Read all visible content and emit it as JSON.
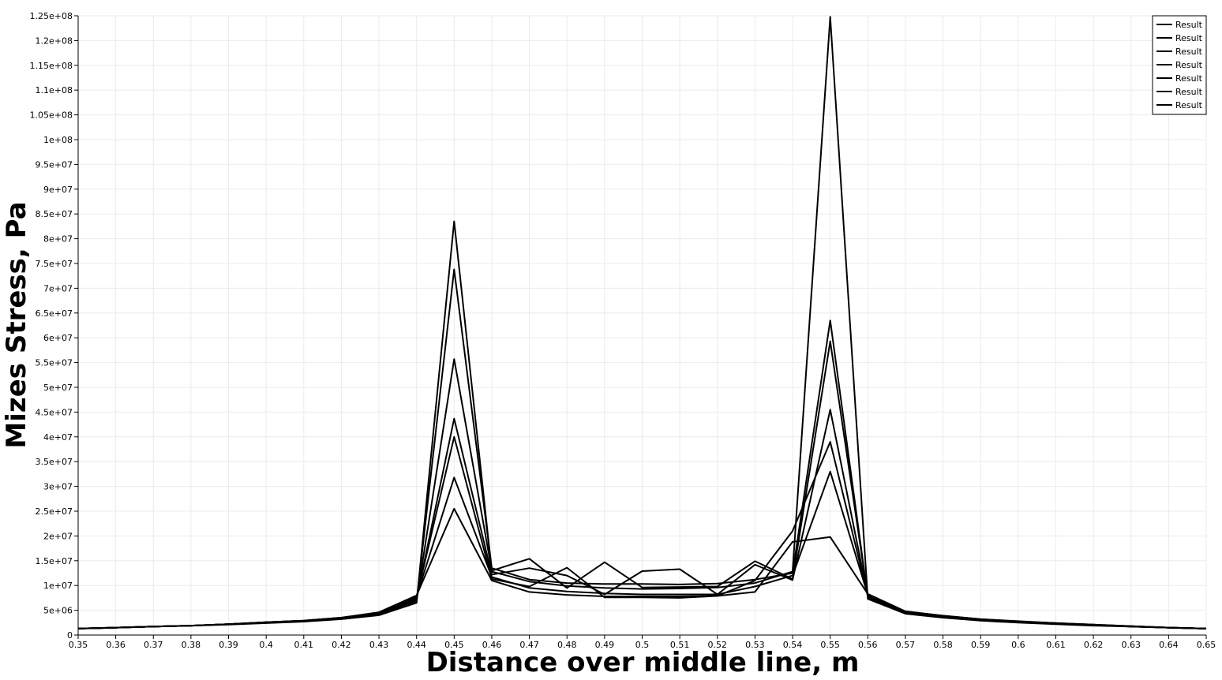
{
  "chart_data": {
    "type": "line",
    "title": "",
    "xlabel": "Distance over middle line, m",
    "ylabel": "Mizes Stress, Pa",
    "xlim": [
      0.35,
      0.65
    ],
    "ylim": [
      0,
      125000000
    ],
    "grid": true,
    "legend_position": "top-right",
    "x_ticks": [
      "0.35",
      "0.36",
      "0.37",
      "0.38",
      "0.39",
      "0.4",
      "0.41",
      "0.42",
      "0.43",
      "0.44",
      "0.45",
      "0.46",
      "0.47",
      "0.48",
      "0.49",
      "0.5",
      "0.51",
      "0.52",
      "0.53",
      "0.54",
      "0.55",
      "0.56",
      "0.57",
      "0.58",
      "0.59",
      "0.6",
      "0.61",
      "0.62",
      "0.63",
      "0.64",
      "0.65"
    ],
    "y_ticks": [
      "0",
      "5e+06",
      "1e+07",
      "1.5e+07",
      "2e+07",
      "2.5e+07",
      "3e+07",
      "3.5e+07",
      "4e+07",
      "4.5e+07",
      "5e+07",
      "5.5e+07",
      "6e+07",
      "6.5e+07",
      "7e+07",
      "7.5e+07",
      "8e+07",
      "8.5e+07",
      "9e+07",
      "9.5e+07",
      "1e+08",
      "1.05e+08",
      "1.1e+08",
      "1.15e+08",
      "1.2e+08",
      "1.25e+08"
    ],
    "x": [
      0.35,
      0.36,
      0.37,
      0.38,
      0.39,
      0.4,
      0.41,
      0.42,
      0.43,
      0.44,
      0.45,
      0.46,
      0.47,
      0.48,
      0.49,
      0.5,
      0.51,
      0.52,
      0.53,
      0.54,
      0.55,
      0.56,
      0.57,
      0.58,
      0.59,
      0.6,
      0.61,
      0.62,
      0.63,
      0.64,
      0.65
    ],
    "series": [
      {
        "name": "Result",
        "values": [
          1300000,
          1500000,
          1700000,
          1900000,
          2100000,
          2400000,
          2700000,
          3200000,
          4000000,
          6500000,
          83500000,
          12800000,
          10800000,
          9900000,
          9500000,
          9300000,
          9400000,
          9600000,
          10500000,
          12800000,
          124800000,
          7300000,
          4300000,
          3500000,
          2900000,
          2500000,
          2200000,
          1900000,
          1700000,
          1500000,
          1300000
        ]
      },
      {
        "name": "Result",
        "values": [
          1300000,
          1500000,
          1700000,
          1900000,
          2200000,
          2500000,
          2800000,
          3300000,
          4200000,
          6800000,
          73800000,
          13500000,
          11200000,
          10500000,
          10300000,
          10300000,
          10200000,
          10400000,
          11200000,
          12500000,
          63500000,
          7600000,
          4400000,
          3600000,
          3000000,
          2600000,
          2300000,
          2000000,
          1700000,
          1500000,
          1300000
        ]
      },
      {
        "name": "Result",
        "values": [
          1300000,
          1500000,
          1700000,
          1900000,
          2200000,
          2500000,
          2800000,
          3400000,
          4300000,
          7000000,
          55700000,
          13000000,
          15400000,
          9500000,
          14700000,
          9600000,
          9700000,
          9800000,
          14900000,
          11300000,
          59300000,
          7800000,
          4500000,
          3700000,
          3100000,
          2600000,
          2300000,
          2000000,
          1700000,
          1500000,
          1300000
        ]
      },
      {
        "name": "Result",
        "values": [
          1300000,
          1500000,
          1700000,
          1900000,
          2200000,
          2500000,
          2800000,
          3400000,
          4400000,
          7300000,
          43700000,
          12200000,
          13500000,
          12000000,
          8200000,
          12900000,
          13300000,
          8200000,
          14200000,
          11100000,
          45500000,
          7800000,
          4500000,
          3700000,
          3100000,
          2700000,
          2300000,
          2000000,
          1700000,
          1500000,
          1300000
        ]
      },
      {
        "name": "Result",
        "values": [
          1300000,
          1500000,
          1700000,
          1900000,
          2200000,
          2600000,
          2900000,
          3500000,
          4500000,
          7600000,
          40000000,
          11300000,
          9800000,
          13600000,
          7600000,
          7600000,
          7500000,
          7900000,
          11000000,
          21000000,
          39000000,
          8000000,
          4600000,
          3800000,
          3100000,
          2700000,
          2400000,
          2000000,
          1800000,
          1500000,
          1300000
        ]
      },
      {
        "name": "Result",
        "values": [
          1300000,
          1500000,
          1700000,
          1900000,
          2200000,
          2600000,
          2900000,
          3500000,
          4500000,
          7800000,
          31800000,
          11700000,
          9500000,
          8800000,
          8400000,
          8200000,
          8200000,
          8200000,
          9800000,
          12000000,
          33000000,
          8100000,
          4700000,
          3900000,
          3200000,
          2700000,
          2400000,
          2100000,
          1800000,
          1500000,
          1300000
        ]
      },
      {
        "name": "Result",
        "values": [
          1300000,
          1500000,
          1700000,
          1900000,
          2200000,
          2600000,
          2900000,
          3500000,
          4600000,
          8000000,
          25500000,
          11000000,
          8700000,
          8100000,
          7800000,
          7800000,
          7800000,
          7900000,
          8700000,
          18800000,
          19800000,
          8300000,
          4800000,
          3900000,
          3200000,
          2800000,
          2400000,
          2100000,
          1800000,
          1500000,
          1300000
        ]
      }
    ]
  }
}
